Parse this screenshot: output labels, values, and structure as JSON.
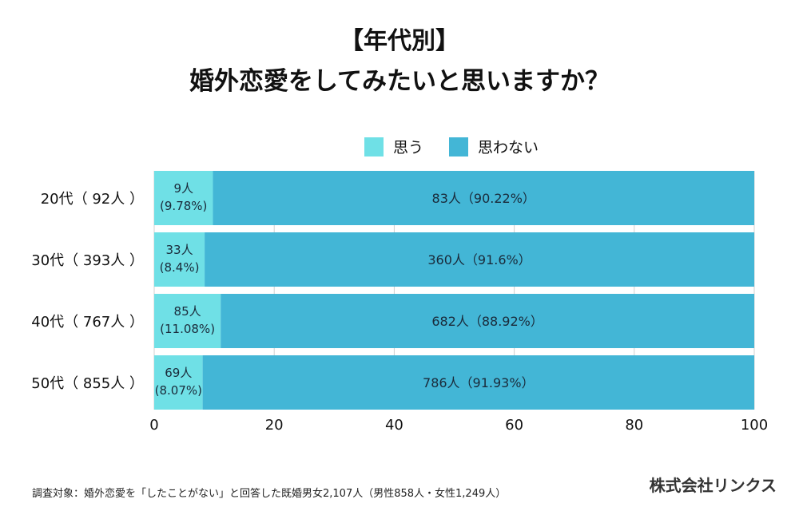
{
  "title": {
    "line1": "【年代別】",
    "line2": "婚外恋愛をしてみたいと思いますか？"
  },
  "colors": {
    "yes": "#6fe0e6",
    "no": "#43b6d6",
    "grid": "#d0d0d0",
    "bar_text": "#1a2a3a",
    "axis_text": "#111111"
  },
  "legend": [
    {
      "label": "思う",
      "color": "#6fe0e6"
    },
    {
      "label": "思わない",
      "color": "#43b6d6"
    }
  ],
  "footnote": "調査対象：婚外恋愛を「したことがない」と回答した既婚男女2,107人（男性858人・女性1,249人）",
  "company": "株式会社リンクス",
  "chart_data": {
    "type": "bar",
    "orientation": "horizontal",
    "stacked": true,
    "title": "【年代別】婚外恋愛をしてみたいと思いますか？",
    "xlabel": "",
    "ylabel": "",
    "xlim": [
      0,
      100
    ],
    "xticks": [
      0,
      20,
      40,
      60,
      80,
      100
    ],
    "grid": true,
    "legend_position": "top-center",
    "categories": [
      "20代（92人）",
      "30代（393人）",
      "40代（767人）",
      "50代（855人）"
    ],
    "category_labels": [
      "20代（ 92人 ）",
      "30代（ 393人 ）",
      "40代（ 767人 ）",
      "50代（ 855人 ）"
    ],
    "series": [
      {
        "name": "思う",
        "values": [
          9.78,
          8.4,
          11.08,
          8.07
        ],
        "counts": [
          9,
          33,
          85,
          69
        ],
        "labels_line1": [
          "9人",
          "33人",
          "85人",
          "69人"
        ],
        "labels_line2": [
          "(9.78%)",
          "(8.4%)",
          "(11.08%)",
          "(8.07%)"
        ]
      },
      {
        "name": "思わない",
        "values": [
          90.22,
          91.6,
          88.92,
          91.93
        ],
        "counts": [
          83,
          360,
          682,
          786
        ],
        "labels": [
          "83人（90.22%）",
          "360人（91.6%）",
          "682人（88.92%）",
          "786人（91.93%）"
        ]
      }
    ]
  }
}
